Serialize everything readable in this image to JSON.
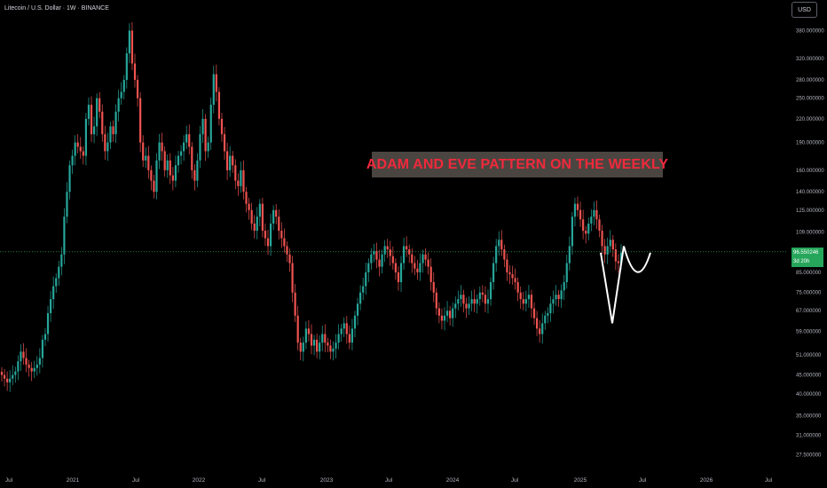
{
  "header": {
    "symbol_title": "Litecoin / U.S. Dollar · 1W · BINANCE"
  },
  "toolbar": {
    "currency_label": "USD"
  },
  "annotation": {
    "text": "ADAM AND EVE PATTERN ON THE WEEKLY"
  },
  "last_price": {
    "value": "96.550246",
    "countdown": "3d 20h"
  },
  "colors": {
    "up": "#26a69a",
    "down": "#ef5350",
    "annotation_bg": "#4a4540",
    "annotation_text": "#f0293c",
    "price_tag": "#26a65b"
  },
  "chart_data": {
    "type": "candlestick",
    "title": "Litecoin / U.S. Dollar · 1W · BINANCE",
    "xlabel": "",
    "ylabel": "",
    "y_scale": "log",
    "ylim": [
      25.5,
      430
    ],
    "x_ticks": [
      "Jul",
      "2021",
      "Jul",
      "2022",
      "Jul",
      "2023",
      "Jul",
      "2024",
      "Jul",
      "2025",
      "Jul",
      "2026",
      "Jul"
    ],
    "y_ticks": [
      27.5,
      31.0,
      35.0,
      40.0,
      45.0,
      51.0,
      59.0,
      67.0,
      75.0,
      85.0,
      96.0,
      109.0,
      125.0,
      140.0,
      160.0,
      190.0,
      220.0,
      250.0,
      280.0,
      320.0,
      380.0
    ],
    "y_tick_labels": [
      "27.500000",
      "31.000000",
      "35.000000",
      "40.000000",
      "45.000000",
      "51.000000",
      "59.000000",
      "67.000000",
      "75.000000",
      "85.000000",
      "96.000000",
      "109.000000",
      "125.000000",
      "140.000000",
      "160.000000",
      "190.000000",
      "220.000000",
      "250.000000",
      "280.000000",
      "320.000000",
      "380.000000"
    ],
    "series": [
      {
        "name": "LTCUSD",
        "closes": [
          45,
          44,
          43,
          44,
          45,
          46,
          49,
          52,
          50,
          48,
          47,
          46,
          47,
          48,
          50,
          56,
          58,
          66,
          72,
          78,
          82,
          88,
          95,
          120,
          140,
          165,
          175,
          190,
          185,
          180,
          175,
          220,
          240,
          200,
          210,
          250,
          230,
          200,
          180,
          190,
          210,
          200,
          230,
          250,
          260,
          280,
          330,
          380,
          310,
          280,
          250,
          190,
          170,
          175,
          160,
          150,
          140,
          170,
          190,
          180,
          160,
          170,
          155,
          150,
          165,
          175,
          180,
          190,
          200,
          185,
          160,
          150,
          170,
          200,
          220,
          180,
          190,
          240,
          290,
          260,
          220,
          200,
          180,
          160,
          175,
          165,
          150,
          145,
          160,
          140,
          130,
          125,
          115,
          110,
          120,
          130,
          110,
          105,
          100,
          115,
          125,
          120,
          110,
          105,
          100,
          95,
          90,
          75,
          65,
          55,
          52,
          55,
          60,
          58,
          54,
          56,
          52,
          55,
          58,
          55,
          54,
          52,
          53,
          55,
          58,
          60,
          62,
          58,
          55,
          60,
          65,
          70,
          75,
          78,
          85,
          90,
          95,
          97,
          92,
          88,
          95,
          100,
          98,
          94,
          90,
          85,
          80,
          90,
          100,
          98,
          95,
          90,
          87,
          85,
          90,
          95,
          92,
          88,
          80,
          75,
          68,
          65,
          63,
          65,
          67,
          64,
          68,
          70,
          72,
          74,
          70,
          68,
          70,
          72,
          70,
          72,
          75,
          74,
          70,
          72,
          80,
          90,
          100,
          104,
          98,
          92,
          85,
          84,
          82,
          80,
          75,
          72,
          70,
          72,
          74,
          68,
          64,
          60,
          58,
          62,
          65,
          66,
          70,
          72,
          74,
          72,
          76,
          80,
          90,
          100,
          120,
          130,
          125,
          118,
          110,
          108,
          115,
          120,
          125,
          118,
          110,
          100,
          95,
          100,
          104,
          98,
          91,
          90,
          96
        ]
      },
      {
        "name": "pattern-overlay",
        "points": [
          [
            0,
            96
          ],
          [
            1,
            62
          ],
          [
            2,
            100
          ],
          [
            3,
            80
          ],
          [
            4,
            96
          ]
        ]
      }
    ],
    "grid": false,
    "legend": "none"
  }
}
